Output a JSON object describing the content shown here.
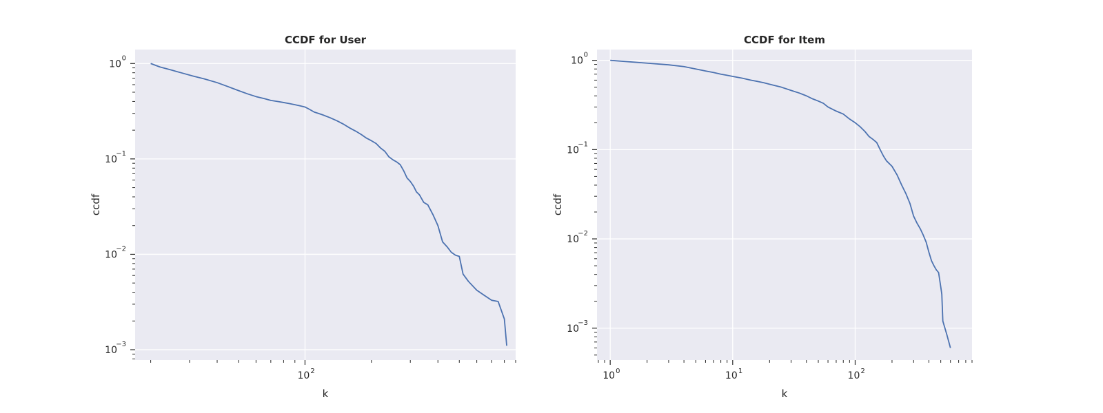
{
  "chart_data": [
    {
      "type": "line",
      "title": "CCDF for User",
      "xlabel": "k",
      "ylabel": "ccdf",
      "xscale": "log",
      "yscale": "log",
      "xlim": [
        17,
        900
      ],
      "ylim": [
        0.00078,
        1.4
      ],
      "grid": true,
      "line_color": "#4c72b0",
      "background_color": "#eaeaf2",
      "x_major_ticks": [
        {
          "value": 100,
          "base": "10",
          "exp": "2"
        }
      ],
      "y_major_ticks": [
        {
          "value": 1,
          "base": "10",
          "exp": "0"
        },
        {
          "value": 0.1,
          "base": "10",
          "exp": "−1"
        },
        {
          "value": 0.01,
          "base": "10",
          "exp": "−2"
        },
        {
          "value": 0.001,
          "base": "10",
          "exp": "−3"
        }
      ],
      "series": [
        {
          "x": [
            20,
            22,
            25,
            28,
            31,
            35,
            40,
            45,
            50,
            55,
            60,
            65,
            70,
            75,
            80,
            85,
            90,
            95,
            100,
            105,
            110,
            115,
            120,
            130,
            140,
            150,
            160,
            170,
            180,
            190,
            200,
            210,
            220,
            230,
            240,
            250,
            260,
            270,
            280,
            290,
            300,
            310,
            320,
            330,
            345,
            360,
            380,
            400,
            420,
            440,
            460,
            480,
            500,
            520,
            550,
            600,
            650,
            700,
            750,
            800,
            820
          ],
          "y": [
            1.0,
            0.92,
            0.85,
            0.79,
            0.74,
            0.69,
            0.63,
            0.57,
            0.52,
            0.48,
            0.45,
            0.43,
            0.41,
            0.4,
            0.39,
            0.38,
            0.37,
            0.36,
            0.35,
            0.33,
            0.31,
            0.3,
            0.29,
            0.27,
            0.25,
            0.23,
            0.21,
            0.195,
            0.18,
            0.165,
            0.155,
            0.145,
            0.13,
            0.12,
            0.105,
            0.098,
            0.093,
            0.087,
            0.075,
            0.063,
            0.058,
            0.052,
            0.045,
            0.042,
            0.035,
            0.033,
            0.026,
            0.02,
            0.0135,
            0.012,
            0.0105,
            0.0098,
            0.0095,
            0.0062,
            0.0052,
            0.0042,
            0.0037,
            0.0033,
            0.0032,
            0.0021,
            0.0011
          ]
        }
      ]
    },
    {
      "type": "line",
      "title": "CCDF for Item",
      "xlabel": "k",
      "ylabel": "ccdf",
      "xscale": "log",
      "yscale": "log",
      "xlim": [
        0.78,
        900
      ],
      "ylim": [
        0.00044,
        1.32
      ],
      "grid": true,
      "line_color": "#4c72b0",
      "background_color": "#eaeaf2",
      "x_major_ticks": [
        {
          "value": 1,
          "base": "10",
          "exp": "0"
        },
        {
          "value": 10,
          "base": "10",
          "exp": "1"
        },
        {
          "value": 100,
          "base": "10",
          "exp": "2"
        }
      ],
      "y_major_ticks": [
        {
          "value": 1,
          "base": "10",
          "exp": "0"
        },
        {
          "value": 0.1,
          "base": "10",
          "exp": "−1"
        },
        {
          "value": 0.01,
          "base": "10",
          "exp": "−2"
        },
        {
          "value": 0.001,
          "base": "10",
          "exp": "−3"
        }
      ],
      "series": [
        {
          "x": [
            1,
            2,
            3,
            4,
            5,
            6,
            7,
            8,
            9,
            10,
            12,
            14,
            16,
            18,
            20,
            25,
            30,
            35,
            40,
            45,
            50,
            55,
            60,
            70,
            80,
            90,
            100,
            110,
            120,
            130,
            140,
            150,
            160,
            170,
            180,
            200,
            220,
            240,
            260,
            280,
            300,
            320,
            340,
            360,
            380,
            400,
            420,
            440,
            460,
            480,
            500,
            510,
            520,
            560,
            600
          ],
          "y": [
            1.0,
            0.93,
            0.89,
            0.85,
            0.8,
            0.76,
            0.73,
            0.7,
            0.68,
            0.66,
            0.63,
            0.6,
            0.58,
            0.56,
            0.54,
            0.5,
            0.46,
            0.43,
            0.4,
            0.37,
            0.35,
            0.33,
            0.3,
            0.27,
            0.25,
            0.22,
            0.2,
            0.18,
            0.16,
            0.14,
            0.13,
            0.12,
            0.1,
            0.085,
            0.075,
            0.065,
            0.052,
            0.04,
            0.032,
            0.025,
            0.018,
            0.015,
            0.013,
            0.011,
            0.0092,
            0.0071,
            0.0057,
            0.005,
            0.0045,
            0.0042,
            0.0029,
            0.0024,
            0.0012,
            0.00085,
            0.0006
          ]
        }
      ]
    }
  ]
}
